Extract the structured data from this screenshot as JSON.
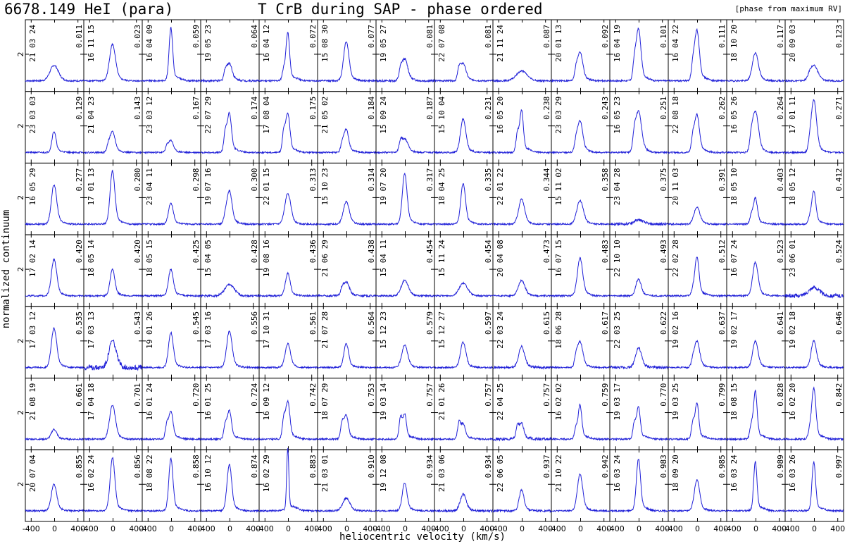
{
  "header": {
    "line_id": "6678.149  HeI (para)",
    "title": "T CrB during SAP - phase ordered",
    "note": "[phase from maximum RV]"
  },
  "colors": {
    "spectrum": "#2020d8",
    "axes": "#000000"
  },
  "chart_data": {
    "type": "line",
    "layout": "small-multiples grid, 14 columns x 7 rows",
    "title": "T CrB during SAP - phase ordered",
    "xlabel": "heliocentric velocity (km/s)",
    "ylabel": "normalized continuum",
    "x_ticks": [
      -400,
      0,
      400
    ],
    "y_tick_label": "2",
    "xlim": [
      -500,
      500
    ],
    "ylim": [
      0.6,
      3.3
    ],
    "y_tick_value": 2,
    "line_center_kms": -10,
    "panels": [
      {
        "date": "21 03 24",
        "phase": "0.011",
        "peak": 1.55,
        "width": 70,
        "comp2": 0,
        "noise": 0.03
      },
      {
        "date": "16 11 15",
        "phase": "0.023",
        "peak": 2.3,
        "width": 50,
        "comp2": 0,
        "noise": 0.03
      },
      {
        "date": "16 04 09",
        "phase": "0.059",
        "peak": 2.9,
        "width": 30,
        "comp2": 0,
        "noise": 0.03
      },
      {
        "date": "19 05 23",
        "phase": "0.064",
        "peak": 1.8,
        "width": 45,
        "comp2": 0.3,
        "noise": 0.04
      },
      {
        "date": "16 04 12",
        "phase": "0.072",
        "peak": 2.95,
        "width": 30,
        "comp2": 0.4,
        "noise": 0.03
      },
      {
        "date": "15 08 30",
        "phase": "0.077",
        "peak": 2.4,
        "width": 45,
        "comp2": 0,
        "noise": 0.03
      },
      {
        "date": "19 05 27",
        "phase": "0.081",
        "peak": 1.95,
        "width": 50,
        "comp2": 0.3,
        "noise": 0.04
      },
      {
        "date": "22 07 08",
        "phase": "0.081",
        "peak": 1.85,
        "width": 45,
        "comp2": 0.4,
        "noise": 0.03
      },
      {
        "date": "21 11 24",
        "phase": "0.087",
        "peak": 1.35,
        "width": 90,
        "comp2": 0,
        "noise": 0.03
      },
      {
        "date": "20 01 13",
        "phase": "0.092",
        "peak": 2.2,
        "width": 45,
        "comp2": 0.3,
        "noise": 0.03
      },
      {
        "date": "16 04 19",
        "phase": "0.101",
        "peak": 3.2,
        "width": 40,
        "comp2": 0.6,
        "noise": 0.03
      },
      {
        "date": "16 04 22",
        "phase": "0.111",
        "peak": 3.1,
        "width": 40,
        "comp2": 0.5,
        "noise": 0.03
      },
      {
        "date": "18 10 20",
        "phase": "0.117",
        "peak": 2.0,
        "width": 50,
        "comp2": 0,
        "noise": 0.03
      },
      {
        "date": "20 09 03",
        "phase": "0.123",
        "peak": 1.6,
        "width": 65,
        "comp2": 0.1,
        "noise": 0.03
      },
      {
        "date": "23 03 03",
        "phase": "0.129",
        "peak": 1.75,
        "width": 35,
        "comp2": 0,
        "noise": 0.03
      },
      {
        "date": "21 04 23",
        "phase": "0.143",
        "peak": 1.85,
        "width": 45,
        "comp2": 0.2,
        "noise": 0.03
      },
      {
        "date": "23 03 12",
        "phase": "0.167",
        "peak": 1.55,
        "width": 40,
        "comp2": 0.2,
        "noise": 0.03
      },
      {
        "date": "22 07 29",
        "phase": "0.174",
        "peak": 2.8,
        "width": 35,
        "comp2": 0.7,
        "noise": 0.03
      },
      {
        "date": "17 08 04",
        "phase": "0.175",
        "peak": 2.8,
        "width": 35,
        "comp2": 0.7,
        "noise": 0.03
      },
      {
        "date": "21 05 02",
        "phase": "0.184",
        "peak": 2.0,
        "width": 40,
        "comp2": 0.3,
        "noise": 0.03
      },
      {
        "date": "15 09 24",
        "phase": "0.187",
        "peak": 1.65,
        "width": 55,
        "comp2": 0.3,
        "noise": 0.03
      },
      {
        "date": "15 10 04",
        "phase": "0.231",
        "peak": 2.2,
        "width": 45,
        "comp2": 0,
        "noise": 0.03
      },
      {
        "date": "16 05 20",
        "phase": "0.238",
        "peak": 2.9,
        "width": 30,
        "comp2": 0.7,
        "noise": 0.03
      },
      {
        "date": "23 03 29",
        "phase": "0.243",
        "peak": 2.3,
        "width": 45,
        "comp2": 0.3,
        "noise": 0.03
      },
      {
        "date": "16 05 23",
        "phase": "0.251",
        "peak": 2.75,
        "width": 50,
        "comp2": 0.5,
        "noise": 0.03
      },
      {
        "date": "22 08 18",
        "phase": "0.262",
        "peak": 2.65,
        "width": 40,
        "comp2": 0.5,
        "noise": 0.03
      },
      {
        "date": "16 05 26",
        "phase": "0.264",
        "peak": 2.7,
        "width": 50,
        "comp2": 0.4,
        "noise": 0.03
      },
      {
        "date": "17 01 11",
        "phase": "0.271",
        "peak": 3.0,
        "width": 45,
        "comp2": 0.2,
        "noise": 0.03
      },
      {
        "date": "16 05 29",
        "phase": "0.277",
        "peak": 2.4,
        "width": 45,
        "comp2": 0,
        "noise": 0.03
      },
      {
        "date": "17 01 13",
        "phase": "0.280",
        "peak": 2.9,
        "width": 40,
        "comp2": 0,
        "noise": 0.03
      },
      {
        "date": "23 04 11",
        "phase": "0.298",
        "peak": 1.75,
        "width": 40,
        "comp2": 0,
        "noise": 0.03
      },
      {
        "date": "19 07 16",
        "phase": "0.300",
        "peak": 2.3,
        "width": 45,
        "comp2": 0.2,
        "noise": 0.03
      },
      {
        "date": "22 01 15",
        "phase": "0.313",
        "peak": 2.1,
        "width": 50,
        "comp2": 0,
        "noise": 0.03
      },
      {
        "date": "15 10 23",
        "phase": "0.314",
        "peak": 1.8,
        "width": 50,
        "comp2": 0,
        "noise": 0.03
      },
      {
        "date": "19 07 20",
        "phase": "0.317",
        "peak": 2.8,
        "width": 40,
        "comp2": 0,
        "noise": 0.03
      },
      {
        "date": "18 04 25",
        "phase": "0.335",
        "peak": 2.45,
        "width": 40,
        "comp2": 0,
        "noise": 0.03
      },
      {
        "date": "22 01 22",
        "phase": "0.344",
        "peak": 1.9,
        "width": 50,
        "comp2": 0,
        "noise": 0.03
      },
      {
        "date": "15 11 02",
        "phase": "0.358",
        "peak": 1.85,
        "width": 55,
        "comp2": 0,
        "noise": 0.03
      },
      {
        "date": "23 04 28",
        "phase": "0.375",
        "peak": 1.15,
        "width": 80,
        "comp2": 0,
        "noise": 0.05
      },
      {
        "date": "20 11 03",
        "phase": "0.391",
        "peak": 1.6,
        "width": 50,
        "comp2": 0,
        "noise": 0.03
      },
      {
        "date": "18 05 10",
        "phase": "0.403",
        "peak": 2.1,
        "width": 35,
        "comp2": 0.3,
        "noise": 0.03
      },
      {
        "date": "18 05 12",
        "phase": "0.412",
        "peak": 2.3,
        "width": 35,
        "comp2": 0.2,
        "noise": 0.03
      },
      {
        "date": "17 02 14",
        "phase": "0.420",
        "peak": 2.3,
        "width": 45,
        "comp2": 0,
        "noise": 0.03
      },
      {
        "date": "18 05 14",
        "phase": "0.420",
        "peak": 1.95,
        "width": 40,
        "comp2": 0,
        "noise": 0.03
      },
      {
        "date": "18 05 15",
        "phase": "0.425",
        "peak": 1.95,
        "width": 40,
        "comp2": 0,
        "noise": 0.03
      },
      {
        "date": "15 04 05",
        "phase": "0.428",
        "peak": 1.4,
        "width": 80,
        "comp2": 0,
        "noise": 0.04
      },
      {
        "date": "19 08 16",
        "phase": "0.436",
        "peak": 1.8,
        "width": 40,
        "comp2": 0,
        "noise": 0.03
      },
      {
        "date": "21 06 29",
        "phase": "0.438",
        "peak": 1.6,
        "width": 50,
        "comp2": 0.2,
        "noise": 0.04
      },
      {
        "date": "15 04 11",
        "phase": "0.454",
        "peak": 1.55,
        "width": 60,
        "comp2": 0,
        "noise": 0.03
      },
      {
        "date": "15 11 24",
        "phase": "0.454",
        "peak": 1.45,
        "width": 70,
        "comp2": 0,
        "noise": 0.03
      },
      {
        "date": "20 04 08",
        "phase": "0.473",
        "peak": 1.55,
        "width": 55,
        "comp2": 0,
        "noise": 0.03
      },
      {
        "date": "16 07 15",
        "phase": "0.483",
        "peak": 2.35,
        "width": 45,
        "comp2": 0,
        "noise": 0.03
      },
      {
        "date": "22 10 10",
        "phase": "0.493",
        "peak": 1.6,
        "width": 45,
        "comp2": 0,
        "noise": 0.03
      },
      {
        "date": "22 02 28",
        "phase": "0.512",
        "peak": 2.5,
        "width": 35,
        "comp2": 0.2,
        "noise": 0.03
      },
      {
        "date": "16 07 24",
        "phase": "0.523",
        "peak": 2.2,
        "width": 45,
        "comp2": 0,
        "noise": 0.03
      },
      {
        "date": "23 06 01",
        "phase": "0.524",
        "peak": 1.3,
        "width": 90,
        "comp2": 0,
        "noise": 0.07
      },
      {
        "date": "17 03 12",
        "phase": "0.535",
        "peak": 2.4,
        "width": 45,
        "comp2": 0,
        "noise": 0.03
      },
      {
        "date": "17 03 13",
        "phase": "0.543",
        "peak": 1.95,
        "width": 60,
        "comp2": 0,
        "noise": 0.1
      },
      {
        "date": "19 01 26",
        "phase": "0.545",
        "peak": 2.25,
        "width": 40,
        "comp2": 0,
        "noise": 0.03
      },
      {
        "date": "17 03 16",
        "phase": "0.556",
        "peak": 2.3,
        "width": 45,
        "comp2": 0,
        "noise": 0.03
      },
      {
        "date": "17 10 31",
        "phase": "0.561",
        "peak": 1.85,
        "width": 45,
        "comp2": 0,
        "noise": 0.03
      },
      {
        "date": "21 07 28",
        "phase": "0.564",
        "peak": 1.85,
        "width": 40,
        "comp2": 0,
        "noise": 0.03
      },
      {
        "date": "15 12 23",
        "phase": "0.579",
        "peak": 1.8,
        "width": 50,
        "comp2": 0,
        "noise": 0.03
      },
      {
        "date": "15 12 27",
        "phase": "0.597",
        "peak": 1.9,
        "width": 45,
        "comp2": 0,
        "noise": 0.03
      },
      {
        "date": "22 03 24",
        "phase": "0.615",
        "peak": 1.75,
        "width": 50,
        "comp2": 0,
        "noise": 0.04
      },
      {
        "date": "18 06 28",
        "phase": "0.617",
        "peak": 2.1,
        "width": 45,
        "comp2": 0.3,
        "noise": 0.03
      },
      {
        "date": "22 03 25",
        "phase": "0.622",
        "peak": 1.7,
        "width": 50,
        "comp2": 0,
        "noise": 0.05
      },
      {
        "date": "19 02 16",
        "phase": "0.637",
        "peak": 2.05,
        "width": 45,
        "comp2": 0.2,
        "noise": 0.03
      },
      {
        "date": "19 02 17",
        "phase": "0.641",
        "peak": 1.95,
        "width": 45,
        "comp2": 0,
        "noise": 0.03
      },
      {
        "date": "19 02 18",
        "phase": "0.646",
        "peak": 1.95,
        "width": 45,
        "comp2": 0,
        "noise": 0.03
      },
      {
        "date": "21 08 19",
        "phase": "0.661",
        "peak": 1.35,
        "width": 45,
        "comp2": 0,
        "noise": 0.03
      },
      {
        "date": "17 04 18",
        "phase": "0.701",
        "peak": 2.2,
        "width": 50,
        "comp2": 0,
        "noise": 0.03
      },
      {
        "date": "16 01 24",
        "phase": "0.720",
        "peak": 2.3,
        "width": 35,
        "comp2": 0.5,
        "noise": 0.03
      },
      {
        "date": "16 01 25",
        "phase": "0.724",
        "peak": 2.3,
        "width": 35,
        "comp2": 0.5,
        "noise": 0.03
      },
      {
        "date": "16 09 12",
        "phase": "0.742",
        "peak": 2.75,
        "width": 35,
        "comp2": 0.7,
        "noise": 0.03
      },
      {
        "date": "18 07 29",
        "phase": "0.753",
        "peak": 2.2,
        "width": 35,
        "comp2": 0.6,
        "noise": 0.03
      },
      {
        "date": "19 03 14",
        "phase": "0.757",
        "peak": 2.35,
        "width": 30,
        "comp2": 0.8,
        "noise": 0.03
      },
      {
        "date": "21 01 26",
        "phase": "0.757",
        "peak": 1.9,
        "width": 35,
        "comp2": 0.6,
        "noise": 0.03
      },
      {
        "date": "22 04 25",
        "phase": "0.757",
        "peak": 1.85,
        "width": 35,
        "comp2": 0.5,
        "noise": 0.05
      },
      {
        "date": "16 02 02",
        "phase": "0.759",
        "peak": 2.45,
        "width": 30,
        "comp2": 0.4,
        "noise": 0.03
      },
      {
        "date": "19 03 17",
        "phase": "0.770",
        "peak": 2.5,
        "width": 30,
        "comp2": 0.6,
        "noise": 0.03
      },
      {
        "date": "19 03 25",
        "phase": "0.799",
        "peak": 2.65,
        "width": 30,
        "comp2": 0.6,
        "noise": 0.03
      },
      {
        "date": "18 08 15",
        "phase": "0.828",
        "peak": 3.0,
        "width": 30,
        "comp2": 0.5,
        "noise": 0.03
      },
      {
        "date": "16 02 20",
        "phase": "0.842",
        "peak": 3.0,
        "width": 35,
        "comp2": 0.3,
        "noise": 0.03
      },
      {
        "date": "20 07 04",
        "phase": "0.855",
        "peak": 1.95,
        "width": 45,
        "comp2": 0,
        "noise": 0.03
      },
      {
        "date": "16 02 24",
        "phase": "0.856",
        "peak": 2.9,
        "width": 40,
        "comp2": 0,
        "noise": 0.03
      },
      {
        "date": "18 08 22",
        "phase": "0.858",
        "peak": 2.85,
        "width": 35,
        "comp2": 0,
        "noise": 0.03
      },
      {
        "date": "16 10 12",
        "phase": "0.874",
        "peak": 2.65,
        "width": 40,
        "comp2": 0,
        "noise": 0.03
      },
      {
        "date": "16 02 29",
        "phase": "0.883",
        "peak": 3.25,
        "width": 18,
        "comp2": 0,
        "noise": 0.03
      },
      {
        "date": "21 03 01",
        "phase": "0.910",
        "peak": 1.45,
        "width": 60,
        "comp2": 0,
        "noise": 0.03
      },
      {
        "date": "19 12 08",
        "phase": "0.934",
        "peak": 2.0,
        "width": 40,
        "comp2": 0,
        "noise": 0.03
      },
      {
        "date": "21 03 06",
        "phase": "0.934",
        "peak": 1.6,
        "width": 50,
        "comp2": 0,
        "noise": 0.04
      },
      {
        "date": "22 06 05",
        "phase": "0.937",
        "peak": 1.75,
        "width": 40,
        "comp2": 0,
        "noise": 0.04
      },
      {
        "date": "21 10 22",
        "phase": "0.942",
        "peak": 2.3,
        "width": 45,
        "comp2": 0,
        "noise": 0.03
      },
      {
        "date": "16 03 24",
        "phase": "0.983",
        "peak": 2.85,
        "width": 35,
        "comp2": 0,
        "noise": 0.03
      },
      {
        "date": "18 09 20",
        "phase": "0.985",
        "peak": 2.1,
        "width": 45,
        "comp2": 0,
        "noise": 0.03
      },
      {
        "date": "16 03 24",
        "phase": "0.989",
        "peak": 2.75,
        "width": 28,
        "comp2": 0,
        "noise": 0.03
      },
      {
        "date": "16 03 26",
        "phase": "0.997",
        "peak": 2.75,
        "width": 30,
        "comp2": 0,
        "noise": 0.03
      }
    ]
  }
}
